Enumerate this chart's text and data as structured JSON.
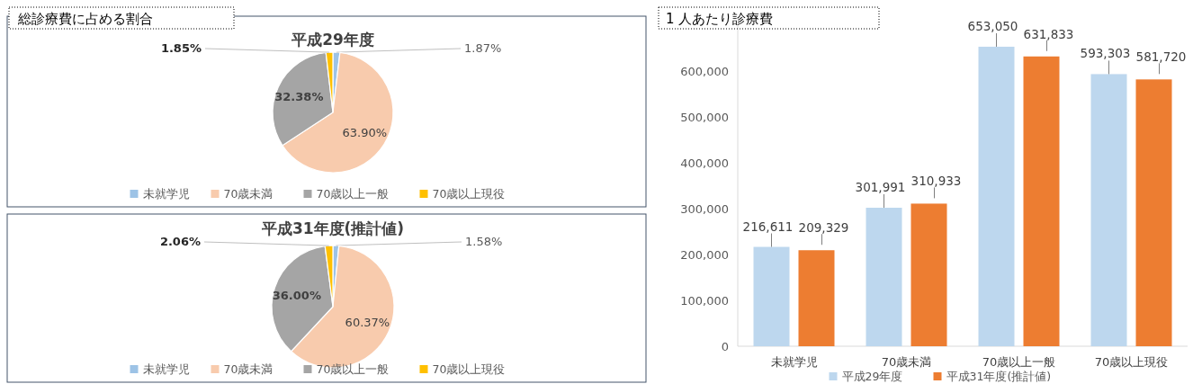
{
  "chart_data": [
    {
      "type": "pie",
      "title": "平成29年度",
      "annotations": [
        "総診療費に占める割合"
      ],
      "categories": [
        "未就学児",
        "70歳未満",
        "70歳以上一般",
        "70歳以上現役"
      ],
      "values": [
        1.87,
        63.9,
        32.38,
        1.85
      ],
      "colors": [
        "#9dc3e6",
        "#f8cbad",
        "#a5a5a5",
        "#ffc000"
      ],
      "value_labels": [
        "1.87%",
        "63.90%",
        "32.38%",
        "1.85%"
      ],
      "legend": "bottom"
    },
    {
      "type": "pie",
      "title": "平成31年度(推計値)",
      "categories": [
        "未就学児",
        "70歳未満",
        "70歳以上一般",
        "70歳以上現役"
      ],
      "values": [
        1.58,
        60.37,
        36.0,
        2.06
      ],
      "colors": [
        "#9dc3e6",
        "#f8cbad",
        "#a5a5a5",
        "#ffc000"
      ],
      "value_labels": [
        "1.58%",
        "60.37%",
        "36.00%",
        "2.06%"
      ],
      "legend": "bottom"
    },
    {
      "type": "bar",
      "title": "1 人あたり診療費",
      "categories": [
        "未就学児",
        "70歳未満",
        "70歳以上一般",
        "70歳以上現役"
      ],
      "ylim": [
        0,
        700000
      ],
      "yticks": [
        0,
        {
          "value": 100000,
          "label": "100,000"
        },
        {
          "value": 200000,
          "label": "200,000"
        },
        {
          "value": 300000,
          "label": "300,000"
        },
        {
          "value": 400000,
          "label": "400,000"
        },
        {
          "value": 500000,
          "label": "500,000"
        },
        {
          "value": 600000,
          "label": "600,000"
        }
      ],
      "legend": "bottom",
      "series": [
        {
          "name": "平成29年度",
          "color": "#bdd7ee",
          "values": [
            216611,
            301991,
            653050,
            593303
          ],
          "value_labels": [
            "216,611",
            "301,991",
            "653,050",
            "593,303"
          ]
        },
        {
          "name": "平成31年度(推計値)",
          "color": "#ed7d31",
          "values": [
            209329,
            310933,
            631833,
            581720
          ],
          "value_labels": [
            "209,329",
            "310,933",
            "631,833",
            "581,720"
          ]
        }
      ]
    }
  ]
}
